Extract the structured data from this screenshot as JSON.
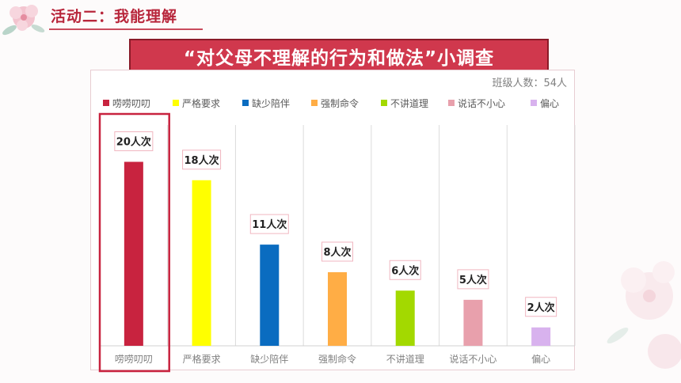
{
  "header": {
    "section_title": "活动二：我能理解"
  },
  "banner": {
    "title": "“对父母不理解的行为和做法”小调查"
  },
  "chart_data": {
    "type": "bar",
    "note": "班级人数：54人",
    "categories": [
      "唠唠叨叨",
      "严格要求",
      "缺少陪伴",
      "强制命令",
      "不讲道理",
      "说话不小心",
      "偏心"
    ],
    "values": [
      20,
      18,
      11,
      8,
      6,
      5,
      2
    ],
    "data_labels": [
      "20人次",
      "18人次",
      "11人次",
      "8人次",
      "6人次",
      "5人次",
      "2人次"
    ],
    "colors": [
      "#c8233f",
      "#ffff00",
      "#0a6cc0",
      "#ffad45",
      "#a3d900",
      "#e8a0ac",
      "#d8b2ee"
    ],
    "legend": [
      "唠唠叨叨",
      "严格要求",
      "缺少陪伴",
      "强制命令",
      "不讲道理",
      "说话不小心",
      "偏心"
    ],
    "legend_position": "top",
    "highlight_category": "唠唠叨叨",
    "highlight_color": "#c8233f",
    "ylim": [
      0,
      24
    ],
    "grid": "vertical"
  }
}
